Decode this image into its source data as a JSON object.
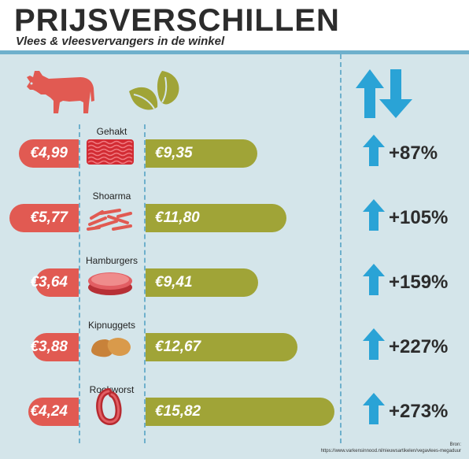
{
  "header": {
    "title": "PRIJSVERSCHILLEN",
    "subtitle": "Vlees & vleesvervangers in de winkel"
  },
  "colors": {
    "meat": "#e15a52",
    "veg": "#a0a437",
    "arrow": "#2aa3d6",
    "panel": "#d4e5ea",
    "line": "#6eb0cc"
  },
  "icons": [
    "cow-icon",
    "leaf-icon",
    "up-down-arrows-icon",
    "up-arrow-icon"
  ],
  "chart_data": {
    "type": "bar",
    "title": "PRIJSVERSCHILLEN",
    "subtitle": "Vlees & vleesvervangers in de winkel",
    "categories": [
      "Gehakt",
      "Shoarma",
      "Hamburgers",
      "Kipnuggets",
      "Rookworst"
    ],
    "series": [
      {
        "values": [
          4.99,
          5.77,
          3.64,
          3.88,
          4.24
        ],
        "labels": [
          "€4,99",
          "€5,77",
          "€3,64",
          "€3,88",
          "€4,24"
        ]
      },
      {
        "values": [
          9.35,
          11.8,
          9.41,
          12.67,
          15.82
        ],
        "labels": [
          "€9,35",
          "€11,80",
          "€9,41",
          "€12,67",
          "€15,82"
        ]
      }
    ],
    "differences": [
      "+87%",
      "+105%",
      "+159%",
      "+227%",
      "+273%"
    ]
  },
  "source": {
    "label": "Bron:",
    "url": "https://www.varkensinnood.nl/nieuwsartikelen/vegavlees-megaduur"
  }
}
